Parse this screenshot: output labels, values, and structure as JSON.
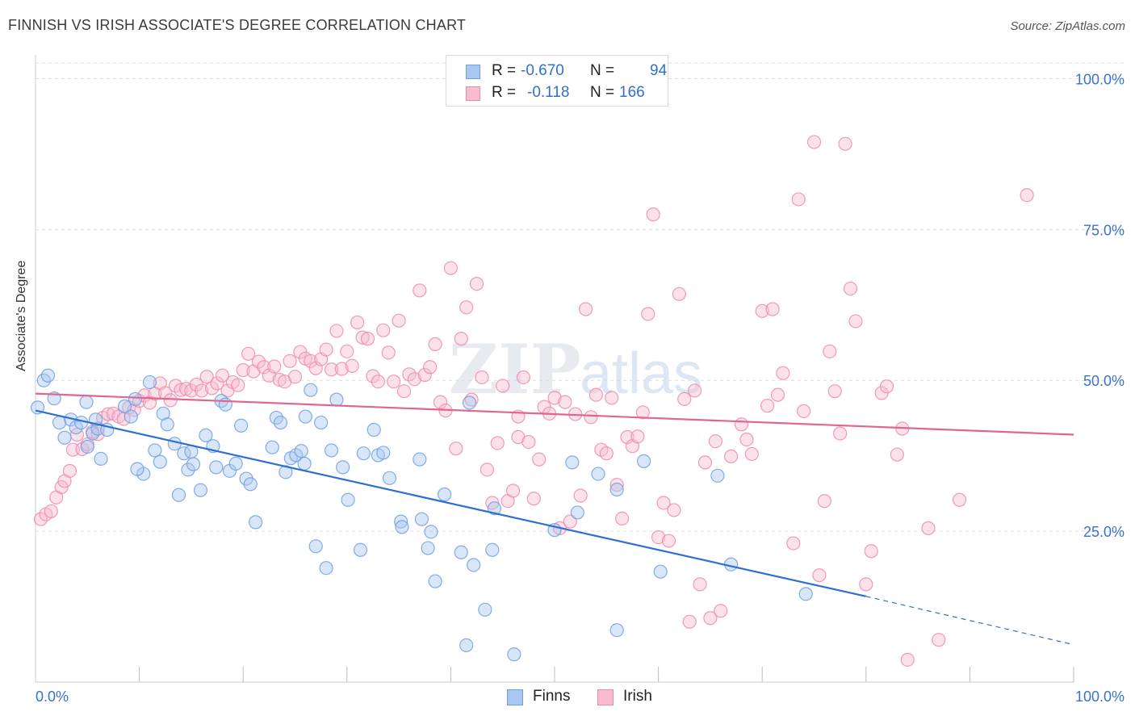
{
  "header": {
    "title": "FINNISH VS IRISH ASSOCIATE'S DEGREE CORRELATION CHART",
    "source": "Source: ZipAtlas.com"
  },
  "legend": {
    "rows": [
      {
        "r_label": "R =",
        "r_value": "-0.670",
        "n_label": "N =",
        "n_value": "94"
      },
      {
        "r_label": "R =",
        "r_value": "-0.118",
        "n_label": "N =",
        "n_value": "166"
      }
    ]
  },
  "bottom_legend": {
    "finns": "Finns",
    "irish": "Irish"
  },
  "watermark": {
    "zip": "ZIP",
    "atlas": "atlas"
  },
  "colors": {
    "finns_fill": "#a9c8f0",
    "finns_stroke": "#6f9fe0",
    "finns_line": "#2f6fd1",
    "irish_fill": "#f7bcd0",
    "irish_stroke": "#ee8aaa",
    "irish_line": "#e0668f",
    "tick_label": "#3b72c9",
    "grid": "#dddddd"
  },
  "chart_data": {
    "type": "scatter",
    "title": "FINNISH VS IRISH ASSOCIATE'S DEGREE CORRELATION CHART",
    "xlabel": "",
    "ylabel": "Associate's Degree",
    "xlim": [
      0,
      100
    ],
    "ylim": [
      0,
      103
    ],
    "x_tick_labels": [
      "0.0%",
      "100.0%"
    ],
    "y_ticks": [
      25,
      50,
      75,
      100
    ],
    "y_tick_labels": [
      "25.0%",
      "50.0%",
      "75.0%",
      "100.0%"
    ],
    "grid": true,
    "legend_position": "top-center",
    "series": [
      {
        "name": "Finns",
        "r": -0.67,
        "n": 94,
        "trend": {
          "x0": 0,
          "y0": 45.0,
          "x1": 80,
          "y1": 14.2,
          "dashed_to_x": 100,
          "dashed_to_y": 6.2
        },
        "points": [
          [
            0.2,
            45.5
          ],
          [
            0.8,
            50
          ],
          [
            1.2,
            50.8
          ],
          [
            1.8,
            47
          ],
          [
            2.3,
            43
          ],
          [
            2.8,
            40.5
          ],
          [
            3.4,
            43.5
          ],
          [
            3.9,
            42.2
          ],
          [
            4.4,
            43
          ],
          [
            4.9,
            46.4
          ],
          [
            5.0,
            39
          ],
          [
            5.5,
            41.2
          ],
          [
            6.0,
            42
          ],
          [
            6.3,
            37
          ],
          [
            6.9,
            41.8
          ],
          [
            8.6,
            45.7
          ],
          [
            9.2,
            44
          ],
          [
            9.6,
            46.9
          ],
          [
            10.4,
            34.5
          ],
          [
            11.0,
            49.7
          ],
          [
            11.5,
            38.4
          ],
          [
            12.0,
            36.5
          ],
          [
            12.3,
            44.5
          ],
          [
            12.7,
            42.7
          ],
          [
            13.4,
            39.5
          ],
          [
            13.8,
            31
          ],
          [
            14.3,
            37.9
          ],
          [
            14.7,
            35.2
          ],
          [
            15.2,
            36.1
          ],
          [
            15.9,
            31.8
          ],
          [
            16.4,
            40.9
          ],
          [
            17.1,
            39.1
          ],
          [
            17.4,
            35.6
          ],
          [
            17.9,
            46.6
          ],
          [
            18.3,
            46
          ],
          [
            18.7,
            35
          ],
          [
            19.3,
            36.2
          ],
          [
            19.8,
            42.5
          ],
          [
            20.3,
            33.7
          ],
          [
            20.7,
            32.8
          ],
          [
            21.2,
            26.5
          ],
          [
            22.8,
            38.9
          ],
          [
            23.2,
            43.8
          ],
          [
            23.6,
            43
          ],
          [
            24.1,
            34.8
          ],
          [
            24.6,
            37.1
          ],
          [
            25.1,
            37.6
          ],
          [
            25.6,
            38.3
          ],
          [
            25.9,
            36.2
          ],
          [
            26.5,
            48.4
          ],
          [
            27.0,
            22.5
          ],
          [
            27.5,
            43
          ],
          [
            28.0,
            18.9
          ],
          [
            28.5,
            38.4
          ],
          [
            29.0,
            46.8
          ],
          [
            29.6,
            35.6
          ],
          [
            30.1,
            30.2
          ],
          [
            31.3,
            21.9
          ],
          [
            31.6,
            37.9
          ],
          [
            32.6,
            41.8
          ],
          [
            33.0,
            37.6
          ],
          [
            33.5,
            38
          ],
          [
            34.1,
            33.8
          ],
          [
            35.2,
            26.6
          ],
          [
            35.3,
            25.7
          ],
          [
            37.2,
            27
          ],
          [
            37.0,
            36.9
          ],
          [
            37.8,
            22.2
          ],
          [
            38.1,
            24.9
          ],
          [
            38.5,
            16.7
          ],
          [
            39.4,
            31.1
          ],
          [
            41.0,
            21.5
          ],
          [
            41.5,
            6.1
          ],
          [
            41.8,
            46.3
          ],
          [
            42.2,
            19.4
          ],
          [
            43.3,
            12
          ],
          [
            44.0,
            21.9
          ],
          [
            44.2,
            28.8
          ],
          [
            46.1,
            4.6
          ],
          [
            50.0,
            25.2
          ],
          [
            51.7,
            36.4
          ],
          [
            52.2,
            28.1
          ],
          [
            54.2,
            34.5
          ],
          [
            56.0,
            8.6
          ],
          [
            56.0,
            31.9
          ],
          [
            58.6,
            36.6
          ],
          [
            60.2,
            18.3
          ],
          [
            65.7,
            34.2
          ],
          [
            67.0,
            19.5
          ],
          [
            74.2,
            14.6
          ],
          [
            26.0,
            44
          ],
          [
            15.0,
            38.2
          ],
          [
            5.8,
            43.5
          ],
          [
            9.8,
            35.3
          ]
        ]
      },
      {
        "name": "Irish",
        "r": -0.118,
        "n": 166,
        "trend": {
          "x0": 0,
          "y0": 47.8,
          "x1": 100,
          "y1": 41.0
        },
        "points": [
          [
            0.5,
            27
          ],
          [
            1.0,
            27.8
          ],
          [
            1.5,
            28.3
          ],
          [
            2.0,
            30.6
          ],
          [
            2.5,
            32.3
          ],
          [
            2.8,
            33.3
          ],
          [
            3.3,
            35
          ],
          [
            3.6,
            38.5
          ],
          [
            4.0,
            41
          ],
          [
            4.5,
            38.6
          ],
          [
            5.0,
            39.4
          ],
          [
            5.5,
            41.5
          ],
          [
            6.0,
            41.1
          ],
          [
            6.5,
            43.8
          ],
          [
            7.0,
            44.4
          ],
          [
            7.5,
            44.5
          ],
          [
            8.0,
            44
          ],
          [
            8.5,
            43.6
          ],
          [
            9.0,
            45.5
          ],
          [
            9.5,
            45.1
          ],
          [
            10.0,
            46.6
          ],
          [
            10.5,
            47.5
          ],
          [
            11.0,
            46.3
          ],
          [
            11.5,
            47.8
          ],
          [
            12.0,
            49.5
          ],
          [
            12.5,
            47.9
          ],
          [
            13.0,
            46.7
          ],
          [
            13.5,
            49.1
          ],
          [
            14.0,
            48.4
          ],
          [
            14.5,
            48.6
          ],
          [
            15.0,
            48.3
          ],
          [
            15.5,
            49.3
          ],
          [
            16.0,
            48.3
          ],
          [
            16.5,
            50.6
          ],
          [
            17.0,
            48.7
          ],
          [
            17.5,
            49.5
          ],
          [
            18.0,
            50.8
          ],
          [
            18.5,
            48.3
          ],
          [
            19.0,
            49.7
          ],
          [
            19.5,
            49.2
          ],
          [
            20.0,
            51.7
          ],
          [
            20.5,
            54.4
          ],
          [
            21.0,
            51.5
          ],
          [
            21.5,
            53.1
          ],
          [
            22.0,
            52.2
          ],
          [
            22.5,
            50.8
          ],
          [
            23.0,
            52.3
          ],
          [
            23.5,
            50.1
          ],
          [
            24.0,
            49.8
          ],
          [
            24.5,
            53.2
          ],
          [
            25.0,
            50.6
          ],
          [
            25.5,
            54.7
          ],
          [
            26.0,
            53.6
          ],
          [
            26.5,
            53.2
          ],
          [
            27.0,
            52
          ],
          [
            27.5,
            53.5
          ],
          [
            28.0,
            55.1
          ],
          [
            28.5,
            51.8
          ],
          [
            29.0,
            58.2
          ],
          [
            29.5,
            51.9
          ],
          [
            30.0,
            54.8
          ],
          [
            30.5,
            52.4
          ],
          [
            31.0,
            59.6
          ],
          [
            31.5,
            57.1
          ],
          [
            32.0,
            56.9
          ],
          [
            32.5,
            50.7
          ],
          [
            33.0,
            49.8
          ],
          [
            33.5,
            58.3
          ],
          [
            34.0,
            54.6
          ],
          [
            34.5,
            49.8
          ],
          [
            35.0,
            59.9
          ],
          [
            35.5,
            48.2
          ],
          [
            36.0,
            51
          ],
          [
            36.5,
            50.2
          ],
          [
            37.0,
            64.9
          ],
          [
            37.5,
            50.9
          ],
          [
            38.0,
            52.2
          ],
          [
            38.5,
            56
          ],
          [
            39.0,
            46.4
          ],
          [
            39.5,
            45
          ],
          [
            40.0,
            68.6
          ],
          [
            40.5,
            38.7
          ],
          [
            41.0,
            56.9
          ],
          [
            41.5,
            62.1
          ],
          [
            42.0,
            46.8
          ],
          [
            42.5,
            66
          ],
          [
            43.0,
            50.5
          ],
          [
            43.5,
            35.2
          ],
          [
            44.0,
            29.7
          ],
          [
            44.5,
            39.6
          ],
          [
            45.0,
            49.1
          ],
          [
            45.5,
            30
          ],
          [
            46.0,
            31.7
          ],
          [
            46.5,
            40.6
          ],
          [
            47.0,
            50.5
          ],
          [
            47.5,
            39.8
          ],
          [
            48.0,
            30.4
          ],
          [
            48.5,
            36.9
          ],
          [
            49.0,
            45.6
          ],
          [
            49.5,
            44.5
          ],
          [
            50.0,
            47.1
          ],
          [
            50.5,
            25.5
          ],
          [
            51.0,
            46.4
          ],
          [
            51.5,
            26.6
          ],
          [
            52.0,
            44.4
          ],
          [
            52.5,
            30.9
          ],
          [
            53.0,
            61.8
          ],
          [
            53.5,
            43.9
          ],
          [
            54.0,
            47.6
          ],
          [
            54.5,
            38.5
          ],
          [
            55.0,
            37.9
          ],
          [
            55.5,
            47.1
          ],
          [
            56.0,
            32.7
          ],
          [
            56.5,
            27.1
          ],
          [
            57.0,
            40.6
          ],
          [
            57.5,
            39.1
          ],
          [
            58.0,
            40.7
          ],
          [
            58.5,
            44.7
          ],
          [
            59.0,
            61
          ],
          [
            59.5,
            77.5
          ],
          [
            60.0,
            24
          ],
          [
            60.5,
            29.7
          ],
          [
            61.0,
            23.4
          ],
          [
            61.5,
            28.5
          ],
          [
            62.0,
            64.3
          ],
          [
            62.5,
            46.9
          ],
          [
            63.0,
            10
          ],
          [
            63.5,
            48.3
          ],
          [
            64.0,
            16.2
          ],
          [
            64.5,
            36.4
          ],
          [
            65.0,
            10.6
          ],
          [
            65.5,
            39.9
          ],
          [
            66.0,
            11.8
          ],
          [
            67.0,
            37.4
          ],
          [
            68.0,
            42.7
          ],
          [
            68.5,
            40.2
          ],
          [
            69.0,
            37.8
          ],
          [
            70.0,
            61.5
          ],
          [
            70.5,
            45.8
          ],
          [
            71.0,
            61.8
          ],
          [
            71.5,
            47.6
          ],
          [
            72.0,
            51.2
          ],
          [
            73.0,
            23
          ],
          [
            73.5,
            80
          ],
          [
            74.0,
            44.9
          ],
          [
            75.0,
            89.5
          ],
          [
            75.5,
            17.7
          ],
          [
            76.0,
            30
          ],
          [
            76.5,
            54.8
          ],
          [
            77.0,
            48.2
          ],
          [
            77.5,
            41.2
          ],
          [
            78.0,
            89.2
          ],
          [
            78.5,
            65.2
          ],
          [
            79.0,
            59.8
          ],
          [
            80.0,
            16.2
          ],
          [
            80.5,
            21.7
          ],
          [
            81.5,
            47.9
          ],
          [
            82.0,
            49
          ],
          [
            83.0,
            37.7
          ],
          [
            83.5,
            42
          ],
          [
            84.0,
            3.7
          ],
          [
            86.0,
            25.5
          ],
          [
            87.0,
            7
          ],
          [
            89.0,
            30.2
          ],
          [
            95.5,
            80.7
          ],
          [
            46.5,
            44
          ]
        ]
      }
    ]
  }
}
